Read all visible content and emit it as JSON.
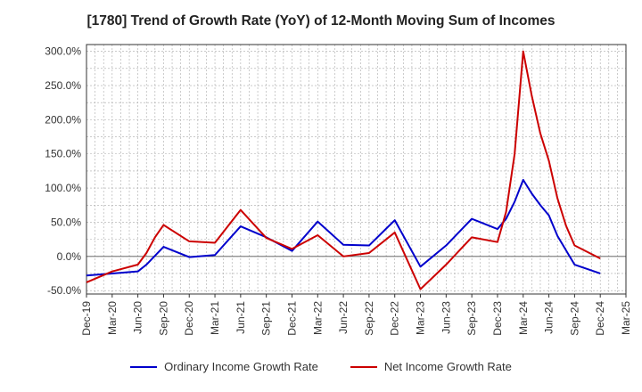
{
  "chart_data": {
    "type": "line",
    "title": "[1780]  Trend of Growth Rate (YoY) of 12-Month Moving Sum of Incomes",
    "xlabel": "",
    "ylabel": "",
    "ylim": [
      -55,
      310
    ],
    "yticks": [
      -50,
      0,
      50,
      100,
      150,
      200,
      250,
      300
    ],
    "ytick_labels": [
      "-50.0%",
      "0.0%",
      "50.0%",
      "100.0%",
      "150.0%",
      "200.0%",
      "250.0%",
      "300.0%"
    ],
    "xtick_labels": [
      "Dec-19",
      "Mar-20",
      "Jun-20",
      "Sep-20",
      "Dec-20",
      "Mar-21",
      "Jun-21",
      "Sep-21",
      "Dec-21",
      "Mar-22",
      "Jun-22",
      "Sep-22",
      "Dec-22",
      "Mar-23",
      "Jun-23",
      "Sep-23",
      "Dec-23",
      "Mar-24",
      "Jun-24",
      "Sep-24",
      "Dec-24",
      "Mar-25"
    ],
    "grid": true,
    "legend_position": "bottom",
    "series": [
      {
        "name": "Ordinary Income Growth Rate",
        "color": "#0000cc",
        "x": [
          "Dec-19",
          "Mar-20",
          "Jun-20",
          "Jul-20",
          "Sep-20",
          "Dec-20",
          "Mar-21",
          "Jun-21",
          "Sep-21",
          "Dec-21",
          "Mar-22",
          "Jun-22",
          "Sep-22",
          "Dec-22",
          "Mar-23",
          "Jun-23",
          "Sep-23",
          "Oct-23",
          "Dec-23",
          "Jan-24",
          "Feb-24",
          "Mar-24",
          "Apr-24",
          "May-24",
          "Jun-24",
          "Jul-24",
          "Sep-24",
          "Dec-24"
        ],
        "values": [
          -28,
          -25,
          -22,
          -12,
          14,
          -1,
          2,
          44,
          28,
          8,
          51,
          17,
          16,
          53,
          -15,
          16,
          55,
          50,
          40,
          55,
          80,
          112,
          92,
          75,
          60,
          30,
          -12,
          -25
        ]
      },
      {
        "name": "Net Income Growth Rate",
        "color": "#cc0000",
        "x": [
          "Dec-19",
          "Mar-20",
          "Jun-20",
          "Jul-20",
          "Aug-20",
          "Sep-20",
          "Dec-20",
          "Mar-21",
          "Jun-21",
          "Sep-21",
          "Dec-21",
          "Mar-22",
          "Jun-22",
          "Sep-22",
          "Dec-22",
          "Mar-23",
          "Jun-23",
          "Sep-23",
          "Dec-23",
          "Jan-24",
          "Feb-24",
          "Mar-24",
          "Apr-24",
          "May-24",
          "Jun-24",
          "Jul-24",
          "Aug-24",
          "Sep-24",
          "Dec-24"
        ],
        "values": [
          -38,
          -22,
          -12,
          5,
          28,
          46,
          22,
          20,
          68,
          27,
          11,
          31,
          0,
          5,
          35,
          -48,
          -12,
          28,
          21,
          65,
          150,
          300,
          235,
          180,
          140,
          85,
          45,
          16,
          -3
        ]
      }
    ]
  }
}
